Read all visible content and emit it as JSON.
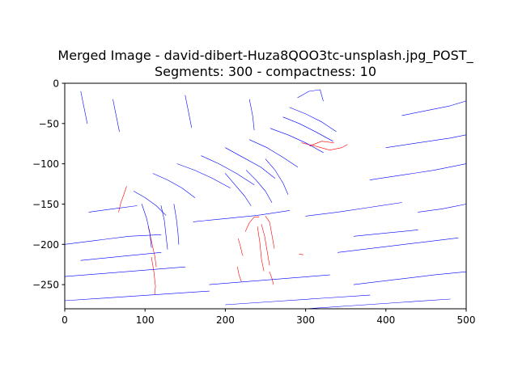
{
  "chart_data": {
    "type": "line",
    "title": "Merged Image - david-dibert-Huza8QOO3tc-unsplash.jpg_POST_",
    "subtitle": "Segments: 300 - compactness: 10",
    "xlabel": "",
    "ylabel": "",
    "xlim": [
      0,
      500
    ],
    "ylim": [
      -280,
      0
    ],
    "x_ticks": [
      0,
      100,
      200,
      300,
      400,
      500
    ],
    "y_ticks": [
      0,
      -50,
      -100,
      -150,
      -200,
      -250
    ],
    "x_tick_labels": [
      "0",
      "100",
      "200",
      "300",
      "400",
      "500"
    ],
    "y_tick_labels": [
      "0",
      "−50",
      "−100",
      "−150",
      "−200",
      "−250"
    ],
    "grid": false,
    "colors": {
      "blue": "#0000ff",
      "red": "#ff0000"
    },
    "series": [
      {
        "color": "red",
        "segments": [
          [
            [
              67,
              -160
            ],
            [
              70,
              -148
            ],
            [
              74,
              -137
            ],
            [
              77,
              -128
            ]
          ],
          [
            [
              104,
              -178
            ],
            [
              108,
              -196
            ],
            [
              112,
              -214
            ],
            [
              114,
              -228
            ]
          ],
          [
            [
              108,
              -216
            ],
            [
              111,
              -234
            ],
            [
              113,
              -252
            ],
            [
              112,
              -262
            ]
          ],
          [
            [
              216,
              -193
            ],
            [
              219,
              -203
            ],
            [
              221,
              -212
            ],
            [
              222,
              -214
            ]
          ],
          [
            [
              215,
              -228
            ],
            [
              217,
              -238
            ],
            [
              220,
              -246
            ]
          ],
          [
            [
              225,
              -184
            ],
            [
              230,
              -173
            ],
            [
              236,
              -166
            ],
            [
              242,
              -166
            ]
          ],
          [
            [
              240,
              -178
            ],
            [
              243,
              -198
            ],
            [
              245,
              -218
            ],
            [
              248,
              -233
            ]
          ],
          [
            [
              245,
              -175
            ],
            [
              249,
              -190
            ],
            [
              252,
              -208
            ],
            [
              255,
              -226
            ]
          ],
          [
            [
              250,
              -165
            ],
            [
              255,
              -172
            ],
            [
              258,
              -188
            ],
            [
              261,
              -205
            ]
          ],
          [
            [
              255,
              -234
            ],
            [
              258,
              -242
            ],
            [
              260,
              -250
            ]
          ],
          [
            [
              295,
              -74
            ],
            [
              312,
              -78
            ],
            [
              330,
              -83
            ],
            [
              345,
              -80
            ],
            [
              352,
              -76
            ]
          ],
          [
            [
              305,
              -78
            ],
            [
              320,
              -72
            ],
            [
              335,
              -74
            ]
          ],
          [
            [
              292,
              -212
            ],
            [
              297,
              -213
            ]
          ]
        ]
      },
      {
        "color": "blue",
        "segments": [
          [
            [
              290,
              -18
            ],
            [
              304,
              -10
            ],
            [
              318,
              -8
            ],
            [
              322,
              -22
            ]
          ],
          [
            [
              280,
              -30
            ],
            [
              300,
              -38
            ],
            [
              320,
              -48
            ],
            [
              338,
              -60
            ]
          ],
          [
            [
              272,
              -42
            ],
            [
              292,
              -50
            ],
            [
              312,
              -60
            ],
            [
              334,
              -72
            ]
          ],
          [
            [
              256,
              -56
            ],
            [
              278,
              -64
            ],
            [
              300,
              -74
            ],
            [
              322,
              -86
            ]
          ],
          [
            [
              230,
              -70
            ],
            [
              252,
              -80
            ],
            [
              272,
              -92
            ],
            [
              290,
              -104
            ]
          ],
          [
            [
              200,
              -80
            ],
            [
              222,
              -92
            ],
            [
              244,
              -104
            ],
            [
              262,
              -118
            ]
          ],
          [
            [
              170,
              -90
            ],
            [
              192,
              -100
            ],
            [
              214,
              -112
            ],
            [
              236,
              -126
            ]
          ],
          [
            [
              140,
              -100
            ],
            [
              162,
              -108
            ],
            [
              184,
              -118
            ],
            [
              206,
              -130
            ]
          ],
          [
            [
              110,
              -112
            ],
            [
              128,
              -120
            ],
            [
              146,
              -130
            ],
            [
              162,
              -142
            ]
          ],
          [
            [
              86,
              -134
            ],
            [
              100,
              -142
            ],
            [
              114,
              -152
            ],
            [
              126,
              -164
            ]
          ],
          [
            [
              96,
              -150
            ],
            [
              102,
              -168
            ],
            [
              106,
              -186
            ],
            [
              108,
              -204
            ]
          ],
          [
            [
              120,
              -152
            ],
            [
              124,
              -170
            ],
            [
              126,
              -188
            ],
            [
              128,
              -206
            ]
          ],
          [
            [
              136,
              -150
            ],
            [
              139,
              -168
            ],
            [
              141,
              -186
            ],
            [
              142,
              -200
            ]
          ],
          [
            [
              200,
              -112
            ],
            [
              212,
              -126
            ],
            [
              224,
              -140
            ],
            [
              232,
              -152
            ]
          ],
          [
            [
              226,
              -108
            ],
            [
              238,
              -120
            ],
            [
              250,
              -134
            ],
            [
              258,
              -148
            ]
          ],
          [
            [
              250,
              -94
            ],
            [
              262,
              -108
            ],
            [
              272,
              -124
            ],
            [
              278,
              -138
            ]
          ],
          [
            [
              0,
              -200
            ],
            [
              40,
              -195
            ],
            [
              80,
              -190
            ],
            [
              120,
              -188
            ]
          ],
          [
            [
              160,
              -172
            ],
            [
              200,
              -168
            ],
            [
              240,
              -164
            ],
            [
              280,
              -158
            ]
          ],
          [
            [
              300,
              -165
            ],
            [
              340,
              -160
            ],
            [
              380,
              -154
            ],
            [
              420,
              -148
            ]
          ],
          [
            [
              380,
              -120
            ],
            [
              420,
              -114
            ],
            [
              460,
              -108
            ],
            [
              500,
              -100
            ]
          ],
          [
            [
              400,
              -80
            ],
            [
              440,
              -74
            ],
            [
              480,
              -68
            ],
            [
              500,
              -64
            ]
          ],
          [
            [
              420,
              -40
            ],
            [
              450,
              -34
            ],
            [
              480,
              -28
            ],
            [
              500,
              -22
            ]
          ],
          [
            [
              0,
              -240
            ],
            [
              50,
              -236
            ],
            [
              100,
              -232
            ],
            [
              150,
              -228
            ]
          ],
          [
            [
              180,
              -250
            ],
            [
              230,
              -246
            ],
            [
              280,
              -242
            ],
            [
              330,
              -238
            ]
          ],
          [
            [
              340,
              -210
            ],
            [
              390,
              -204
            ],
            [
              440,
              -198
            ],
            [
              490,
              -192
            ]
          ],
          [
            [
              0,
              -270
            ],
            [
              60,
              -266
            ],
            [
              120,
              -262
            ],
            [
              180,
              -258
            ]
          ],
          [
            [
              200,
              -275
            ],
            [
              260,
              -271
            ],
            [
              320,
              -267
            ],
            [
              380,
              -263
            ]
          ],
          [
            [
              360,
              -250
            ],
            [
              410,
              -244
            ],
            [
              460,
              -238
            ],
            [
              500,
              -234
            ]
          ],
          [
            [
              20,
              -10
            ],
            [
              24,
              -30
            ],
            [
              28,
              -50
            ]
          ],
          [
            [
              60,
              -20
            ],
            [
              64,
              -40
            ],
            [
              68,
              -60
            ]
          ],
          [
            [
              150,
              -15
            ],
            [
              154,
              -35
            ],
            [
              158,
              -55
            ]
          ],
          [
            [
              230,
              -20
            ],
            [
              234,
              -40
            ],
            [
              236,
              -58
            ]
          ],
          [
            [
              30,
              -160
            ],
            [
              60,
              -156
            ],
            [
              90,
              -152
            ]
          ],
          [
            [
              20,
              -220
            ],
            [
              70,
              -215
            ],
            [
              120,
              -210
            ]
          ],
          [
            [
              300,
              -280
            ],
            [
              360,
              -276
            ],
            [
              420,
              -272
            ],
            [
              480,
              -268
            ]
          ],
          [
            [
              360,
              -190
            ],
            [
              400,
              -186
            ],
            [
              440,
              -182
            ]
          ],
          [
            [
              440,
              -160
            ],
            [
              470,
              -156
            ],
            [
              500,
              -150
            ]
          ]
        ]
      }
    ]
  }
}
